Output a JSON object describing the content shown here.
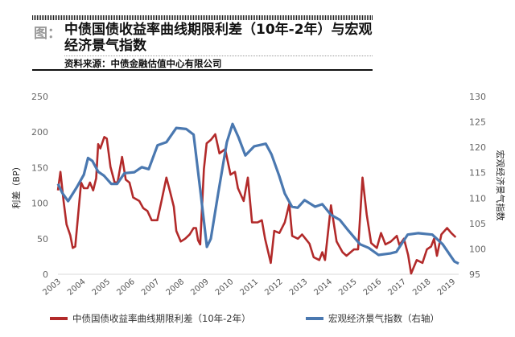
{
  "header": {
    "fig_label": "图：",
    "title": "中债国债收益率曲线期限利差（10年-2年）与宏观经济景气指数",
    "source": "资料来源：中债金融估值中心有限公司"
  },
  "chart_data": {
    "type": "line",
    "title": "中债国债收益率曲线期限利差（10年-2年）与宏观经济景气指数",
    "ylabel": "利差（BP）",
    "y2label": "宏观经济景气指数",
    "xlim": [
      2003,
      2019.25
    ],
    "ylim": [
      0,
      250
    ],
    "y2lim": [
      95,
      130
    ],
    "xticks": [
      "2003",
      "2004",
      "2005",
      "2006",
      "2007",
      "2008",
      "2009",
      "2010",
      "2011",
      "2012",
      "2013",
      "2014",
      "2015",
      "2016",
      "2017",
      "2018",
      "2019"
    ],
    "yticks": [
      "0",
      "50",
      "100",
      "150",
      "200",
      "250"
    ],
    "y2ticks": [
      "95",
      "100",
      "105",
      "110",
      "115",
      "120",
      "125",
      "130"
    ],
    "legend_position": "bottom",
    "series": [
      {
        "name": "中债国债收益率曲线期限利差（10年-2年）",
        "axis": "left",
        "color": "#b22a2a",
        "x": [
          2003.0,
          2003.1,
          2003.23,
          2003.35,
          2003.5,
          2003.6,
          2003.7,
          2003.94,
          2004.05,
          2004.2,
          2004.3,
          2004.43,
          2004.55,
          2004.63,
          2004.72,
          2004.88,
          2004.98,
          2005.13,
          2005.3,
          2005.42,
          2005.6,
          2005.75,
          2005.9,
          2006.05,
          2006.3,
          2006.46,
          2006.63,
          2006.8,
          2007.03,
          2007.2,
          2007.4,
          2007.55,
          2007.7,
          2007.8,
          2007.98,
          2008.16,
          2008.34,
          2008.5,
          2008.6,
          2008.68,
          2008.77,
          2008.92,
          2009.03,
          2009.2,
          2009.38,
          2009.55,
          2009.78,
          2010.0,
          2010.18,
          2010.3,
          2010.53,
          2010.7,
          2010.87,
          2011.1,
          2011.27,
          2011.4,
          2011.63,
          2011.77,
          2011.98,
          2012.2,
          2012.38,
          2012.5,
          2012.73,
          2012.9,
          2013.2,
          2013.37,
          2013.6,
          2013.72,
          2013.83,
          2014.07,
          2014.3,
          2014.54,
          2014.7,
          2015.0,
          2015.17,
          2015.35,
          2015.52,
          2015.7,
          2015.93,
          2016.1,
          2016.28,
          2016.5,
          2016.74,
          2016.85,
          2017.03,
          2017.2,
          2017.32,
          2017.55,
          2017.78,
          2017.96,
          2018.13,
          2018.25,
          2018.37,
          2018.55,
          2018.78,
          2018.95,
          2019.13
        ],
        "values": [
          118,
          144,
          103,
          70,
          55,
          37,
          39,
          129,
          121,
          121,
          129,
          118,
          135,
          183,
          177,
          193,
          191,
          151,
          129,
          130,
          165,
          133,
          129,
          108,
          103,
          93,
          89,
          76,
          76,
          103,
          136,
          116,
          95,
          61,
          46,
          50,
          56,
          65,
          65,
          48,
          42,
          148,
          184,
          189,
          197,
          170,
          176,
          140,
          144,
          121,
          103,
          136,
          73,
          73,
          76,
          50,
          16,
          61,
          58,
          73,
          99,
          54,
          50,
          56,
          43,
          24,
          20,
          31,
          20,
          97,
          46,
          31,
          26,
          35,
          35,
          136,
          84,
          44,
          37,
          58,
          42,
          46,
          54,
          41,
          50,
          27,
          1,
          20,
          16,
          35,
          39,
          50,
          26,
          56,
          65,
          58,
          52
        ]
      },
      {
        "name": "宏观经济景气指数（右轴）",
        "axis": "right",
        "color": "#4a78b0",
        "x": [
          2003.0,
          2003.18,
          2003.41,
          2003.76,
          2004.05,
          2004.22,
          2004.4,
          2004.63,
          2004.87,
          2005.16,
          2005.4,
          2005.7,
          2006.1,
          2006.4,
          2006.68,
          2007.04,
          2007.4,
          2007.8,
          2008.2,
          2008.5,
          2008.8,
          2009.04,
          2009.2,
          2009.5,
          2009.85,
          2010.08,
          2010.32,
          2010.6,
          2010.96,
          2011.43,
          2011.66,
          2011.97,
          2012.2,
          2012.49,
          2012.72,
          2013.0,
          2013.43,
          2013.72,
          2014.07,
          2014.43,
          2014.78,
          2015.25,
          2015.6,
          2016.0,
          2016.48,
          2016.72,
          2017.18,
          2017.6,
          2018.18,
          2018.6,
          2019.08,
          2019.25
        ],
        "values": [
          112.8,
          111,
          109.4,
          112.1,
          114.6,
          117.9,
          117.3,
          115.2,
          114.4,
          112.8,
          112.8,
          114.9,
          115.1,
          116.1,
          115.7,
          120.4,
          121,
          123.8,
          123.6,
          122.5,
          110.5,
          100.4,
          102,
          111,
          121,
          124.6,
          122,
          118.4,
          120.2,
          120.7,
          118.6,
          114.4,
          110.9,
          108.3,
          108.1,
          109.6,
          108.3,
          108.8,
          106.7,
          105.7,
          103.6,
          100.9,
          100.2,
          98.8,
          99.1,
          99.4,
          102.8,
          103.1,
          102.8,
          100.9,
          97.5,
          97.1
        ]
      }
    ]
  }
}
